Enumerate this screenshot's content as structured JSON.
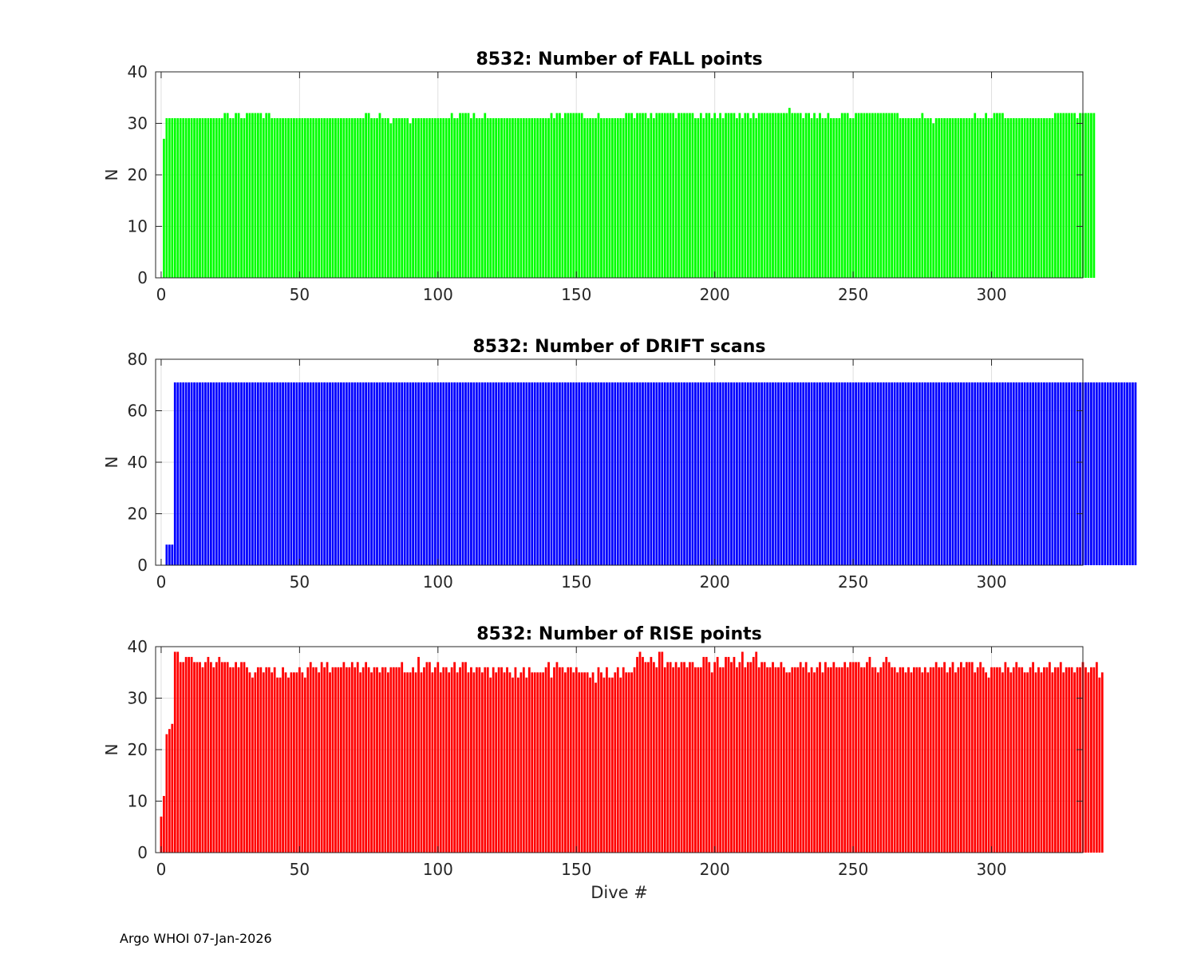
{
  "figure": {
    "xlabel": "Dive #",
    "footer": "Argo WHOI 07-Jan-2026",
    "xticks": [
      "0",
      "50",
      "100",
      "150",
      "200",
      "250",
      "300"
    ]
  },
  "chart_data": [
    {
      "type": "bar",
      "title": "8532: Number of FALL points",
      "xlabel": "",
      "ylabel": "N",
      "xlim": [
        -2,
        333
      ],
      "ylim": [
        0,
        40
      ],
      "yticks": [
        "0",
        "10",
        "20",
        "30",
        "40"
      ],
      "color": "#00ff00",
      "x_start": 0,
      "values": [
        0,
        27,
        31,
        31,
        31,
        31,
        31,
        31,
        31,
        31,
        31,
        31,
        31,
        31,
        31,
        31,
        31,
        31,
        31,
        31,
        31,
        31,
        31,
        32,
        32,
        31,
        31,
        32,
        32,
        31,
        31,
        32,
        32,
        32,
        32,
        32,
        32,
        31,
        32,
        32,
        31,
        31,
        31,
        31,
        31,
        31,
        31,
        31,
        31,
        31,
        31,
        31,
        31,
        31,
        31,
        31,
        31,
        31,
        31,
        31,
        31,
        31,
        31,
        31,
        31,
        31,
        31,
        31,
        31,
        31,
        31,
        31,
        31,
        31,
        32,
        32,
        31,
        31,
        31,
        32,
        31,
        31,
        31,
        30,
        31,
        31,
        31,
        31,
        31,
        31,
        30,
        31,
        31,
        31,
        31,
        31,
        31,
        31,
        31,
        31,
        31,
        31,
        31,
        31,
        31,
        32,
        31,
        31,
        32,
        32,
        32,
        32,
        31,
        32,
        31,
        31,
        31,
        32,
        31,
        31,
        31,
        31,
        31,
        31,
        31,
        31,
        31,
        31,
        31,
        31,
        31,
        31,
        31,
        31,
        31,
        31,
        31,
        31,
        31,
        31,
        31,
        32,
        31,
        32,
        32,
        31,
        32,
        32,
        32,
        32,
        32,
        32,
        32,
        31,
        31,
        31,
        31,
        31,
        32,
        31,
        31,
        31,
        31,
        31,
        31,
        31,
        31,
        31,
        32,
        32,
        32,
        31,
        32,
        32,
        32,
        32,
        31,
        32,
        31,
        32,
        32,
        32,
        32,
        32,
        32,
        32,
        31,
        32,
        32,
        32,
        32,
        32,
        32,
        31,
        31,
        32,
        31,
        32,
        32,
        31,
        32,
        31,
        32,
        31,
        32,
        32,
        32,
        32,
        31,
        32,
        31,
        32,
        32,
        31,
        32,
        31,
        32,
        32,
        32,
        32,
        32,
        32,
        32,
        32,
        32,
        32,
        32,
        33,
        32,
        32,
        32,
        32,
        31,
        32,
        32,
        31,
        32,
        31,
        32,
        31,
        31,
        32,
        31,
        31,
        31,
        31,
        32,
        32,
        32,
        31,
        31,
        32,
        32,
        32,
        32,
        32,
        32,
        32,
        32,
        32,
        32,
        32,
        32,
        32,
        32,
        32,
        32,
        31,
        31,
        31,
        31,
        31,
        31,
        31,
        31,
        32,
        31,
        31,
        31,
        30,
        31,
        31,
        31,
        31,
        31,
        31,
        31,
        31,
        31,
        31,
        31,
        31,
        31,
        31,
        32,
        31,
        31,
        31,
        32,
        31,
        31,
        32,
        32,
        32,
        32,
        31,
        31,
        31,
        31,
        31,
        31,
        31,
        31,
        31,
        31,
        31,
        31,
        31,
        31,
        31,
        31,
        31,
        31,
        32,
        32,
        32,
        32,
        32,
        32,
        32,
        32,
        31,
        32,
        32,
        32,
        32,
        32,
        32
      ]
    },
    {
      "type": "bar",
      "title": "8532: Number of DRIFT scans",
      "xlabel": "",
      "ylabel": "N",
      "xlim": [
        -2,
        333
      ],
      "ylim": [
        0,
        80
      ],
      "yticks": [
        "0",
        "20",
        "40",
        "60",
        "80"
      ],
      "color": "#0000ff",
      "x_start": 0,
      "values": [
        0,
        0,
        8,
        8,
        8,
        71,
        71,
        71,
        71,
        71,
        71,
        71,
        71,
        71,
        71,
        71,
        71,
        71,
        71,
        71,
        71,
        71,
        71,
        71,
        71,
        71,
        71,
        71,
        71,
        71,
        71,
        71,
        71,
        71,
        71,
        71,
        71,
        71,
        71,
        71,
        71,
        71,
        71,
        71,
        71,
        71,
        71,
        71,
        71,
        71,
        71,
        71,
        71,
        71,
        71,
        71,
        71,
        71,
        71,
        71,
        71,
        71,
        71,
        71,
        71,
        71,
        71,
        71,
        71,
        71,
        71,
        71,
        71,
        71,
        71,
        71,
        71,
        71,
        71,
        71,
        71,
        71,
        71,
        71,
        71,
        71,
        71,
        71,
        71,
        71,
        71,
        71,
        71,
        71,
        71,
        71,
        71,
        71,
        71,
        71,
        71,
        71,
        71,
        71,
        71,
        71,
        71,
        71,
        71,
        71,
        71,
        71,
        71,
        71,
        71,
        71,
        71,
        71,
        71,
        71,
        71,
        71,
        71,
        71,
        71,
        71,
        71,
        71,
        71,
        71,
        71,
        71,
        71,
        71,
        71,
        71,
        71,
        71,
        71,
        71,
        71,
        71,
        71,
        71,
        71,
        71,
        71,
        71,
        71,
        71,
        71,
        71,
        71,
        71,
        71,
        71,
        71,
        71,
        71,
        71,
        71,
        71,
        71,
        71,
        71,
        71,
        71,
        71,
        71,
        71,
        71,
        71,
        71,
        71,
        71,
        71,
        71,
        71,
        71,
        71,
        71,
        71,
        71,
        71,
        71,
        71,
        71,
        71,
        71,
        71,
        71,
        71,
        71,
        71,
        71,
        71,
        71,
        71,
        71,
        71,
        71,
        71,
        71,
        71,
        71,
        71,
        71,
        71,
        71,
        71,
        71,
        71,
        71,
        71,
        71,
        71,
        71,
        71,
        71,
        71,
        71,
        71,
        71,
        71,
        71,
        71,
        71,
        71,
        71,
        71,
        71,
        71,
        71,
        71,
        71,
        71,
        71,
        71,
        71,
        71,
        71,
        71,
        71,
        71,
        71,
        71,
        71,
        71,
        71,
        71,
        71,
        71,
        71,
        71,
        71,
        71,
        71,
        71,
        71,
        71,
        71,
        71,
        71,
        71,
        71,
        71,
        71,
        71,
        71,
        71,
        71,
        71,
        71,
        71,
        71,
        71,
        71,
        71,
        71,
        71,
        71,
        71,
        71,
        71,
        71,
        71,
        71,
        71,
        71,
        71,
        71,
        71,
        71,
        71,
        71,
        71,
        71,
        71,
        71,
        71,
        71,
        71,
        71,
        71,
        71,
        71,
        71,
        71,
        71,
        71,
        71,
        71,
        71,
        71,
        71,
        71,
        71,
        71,
        71,
        71,
        71,
        71,
        71,
        71,
        71,
        71,
        71,
        71,
        71,
        71,
        71,
        71,
        71,
        71,
        71,
        71,
        71,
        71,
        71,
        71,
        71,
        71,
        71,
        71,
        71,
        71,
        71,
        71,
        71,
        71,
        71,
        71,
        71
      ]
    },
    {
      "type": "bar",
      "title": "8532: Number of RISE points",
      "xlabel": "Dive #",
      "ylabel": "N",
      "xlim": [
        -2,
        333
      ],
      "ylim": [
        0,
        40
      ],
      "yticks": [
        "0",
        "10",
        "20",
        "30",
        "40"
      ],
      "color": "#ff0000",
      "x_start": 0,
      "values": [
        7,
        11,
        23,
        24,
        25,
        39,
        39,
        37,
        37,
        38,
        38,
        38,
        37,
        37,
        37,
        36,
        37,
        38,
        37,
        36,
        37,
        38,
        37,
        37,
        37,
        36,
        36,
        37,
        36,
        37,
        37,
        36,
        35,
        34,
        35,
        36,
        36,
        35,
        36,
        36,
        35,
        36,
        34,
        34,
        36,
        35,
        34,
        35,
        35,
        35,
        36,
        35,
        34,
        36,
        37,
        36,
        36,
        35,
        37,
        36,
        37,
        35,
        36,
        36,
        36,
        36,
        37,
        36,
        36,
        37,
        36,
        37,
        35,
        36,
        37,
        36,
        35,
        36,
        36,
        35,
        36,
        36,
        35,
        36,
        36,
        36,
        36,
        37,
        35,
        35,
        35,
        36,
        35,
        38,
        35,
        36,
        37,
        37,
        35,
        36,
        37,
        35,
        36,
        36,
        35,
        36,
        37,
        35,
        36,
        37,
        37,
        35,
        36,
        35,
        36,
        36,
        35,
        36,
        36,
        34,
        36,
        35,
        36,
        36,
        35,
        36,
        35,
        34,
        36,
        34,
        35,
        36,
        34,
        36,
        35,
        35,
        35,
        35,
        35,
        36,
        37,
        34,
        36,
        37,
        36,
        36,
        35,
        36,
        36,
        35,
        36,
        35,
        35,
        35,
        35,
        34,
        35,
        33,
        36,
        35,
        34,
        36,
        34,
        34,
        35,
        36,
        34,
        36,
        35,
        35,
        35,
        36,
        38,
        39,
        38,
        37,
        37,
        38,
        37,
        36,
        39,
        39,
        36,
        37,
        37,
        36,
        37,
        36,
        37,
        37,
        36,
        37,
        37,
        36,
        36,
        36,
        38,
        38,
        37,
        35,
        37,
        38,
        36,
        36,
        38,
        38,
        37,
        38,
        36,
        37,
        39,
        36,
        37,
        37,
        38,
        39,
        36,
        37,
        37,
        36,
        36,
        37,
        36,
        36,
        37,
        36,
        35,
        35,
        36,
        36,
        36,
        37,
        36,
        37,
        35,
        36,
        35,
        36,
        37,
        35,
        37,
        36,
        36,
        37,
        36,
        36,
        36,
        37,
        36,
        37,
        37,
        37,
        37,
        36,
        36,
        37,
        38,
        36,
        36,
        35,
        36,
        37,
        38,
        37,
        36,
        36,
        35,
        36,
        36,
        35,
        36,
        35,
        36,
        36,
        36,
        35,
        36,
        35,
        36,
        36,
        37,
        36,
        36,
        37,
        35,
        36,
        37,
        35,
        36,
        37,
        36,
        37,
        37,
        37,
        35,
        36,
        37,
        36,
        35,
        34,
        36,
        36,
        36,
        36,
        35,
        37,
        36,
        35,
        36,
        37,
        36,
        36,
        35,
        35,
        36,
        37,
        35,
        36,
        35,
        36,
        36,
        37,
        35,
        36,
        36,
        37,
        35,
        36,
        36,
        36,
        35,
        36,
        36,
        37,
        36,
        35,
        36,
        36,
        37,
        34,
        35
      ]
    }
  ]
}
